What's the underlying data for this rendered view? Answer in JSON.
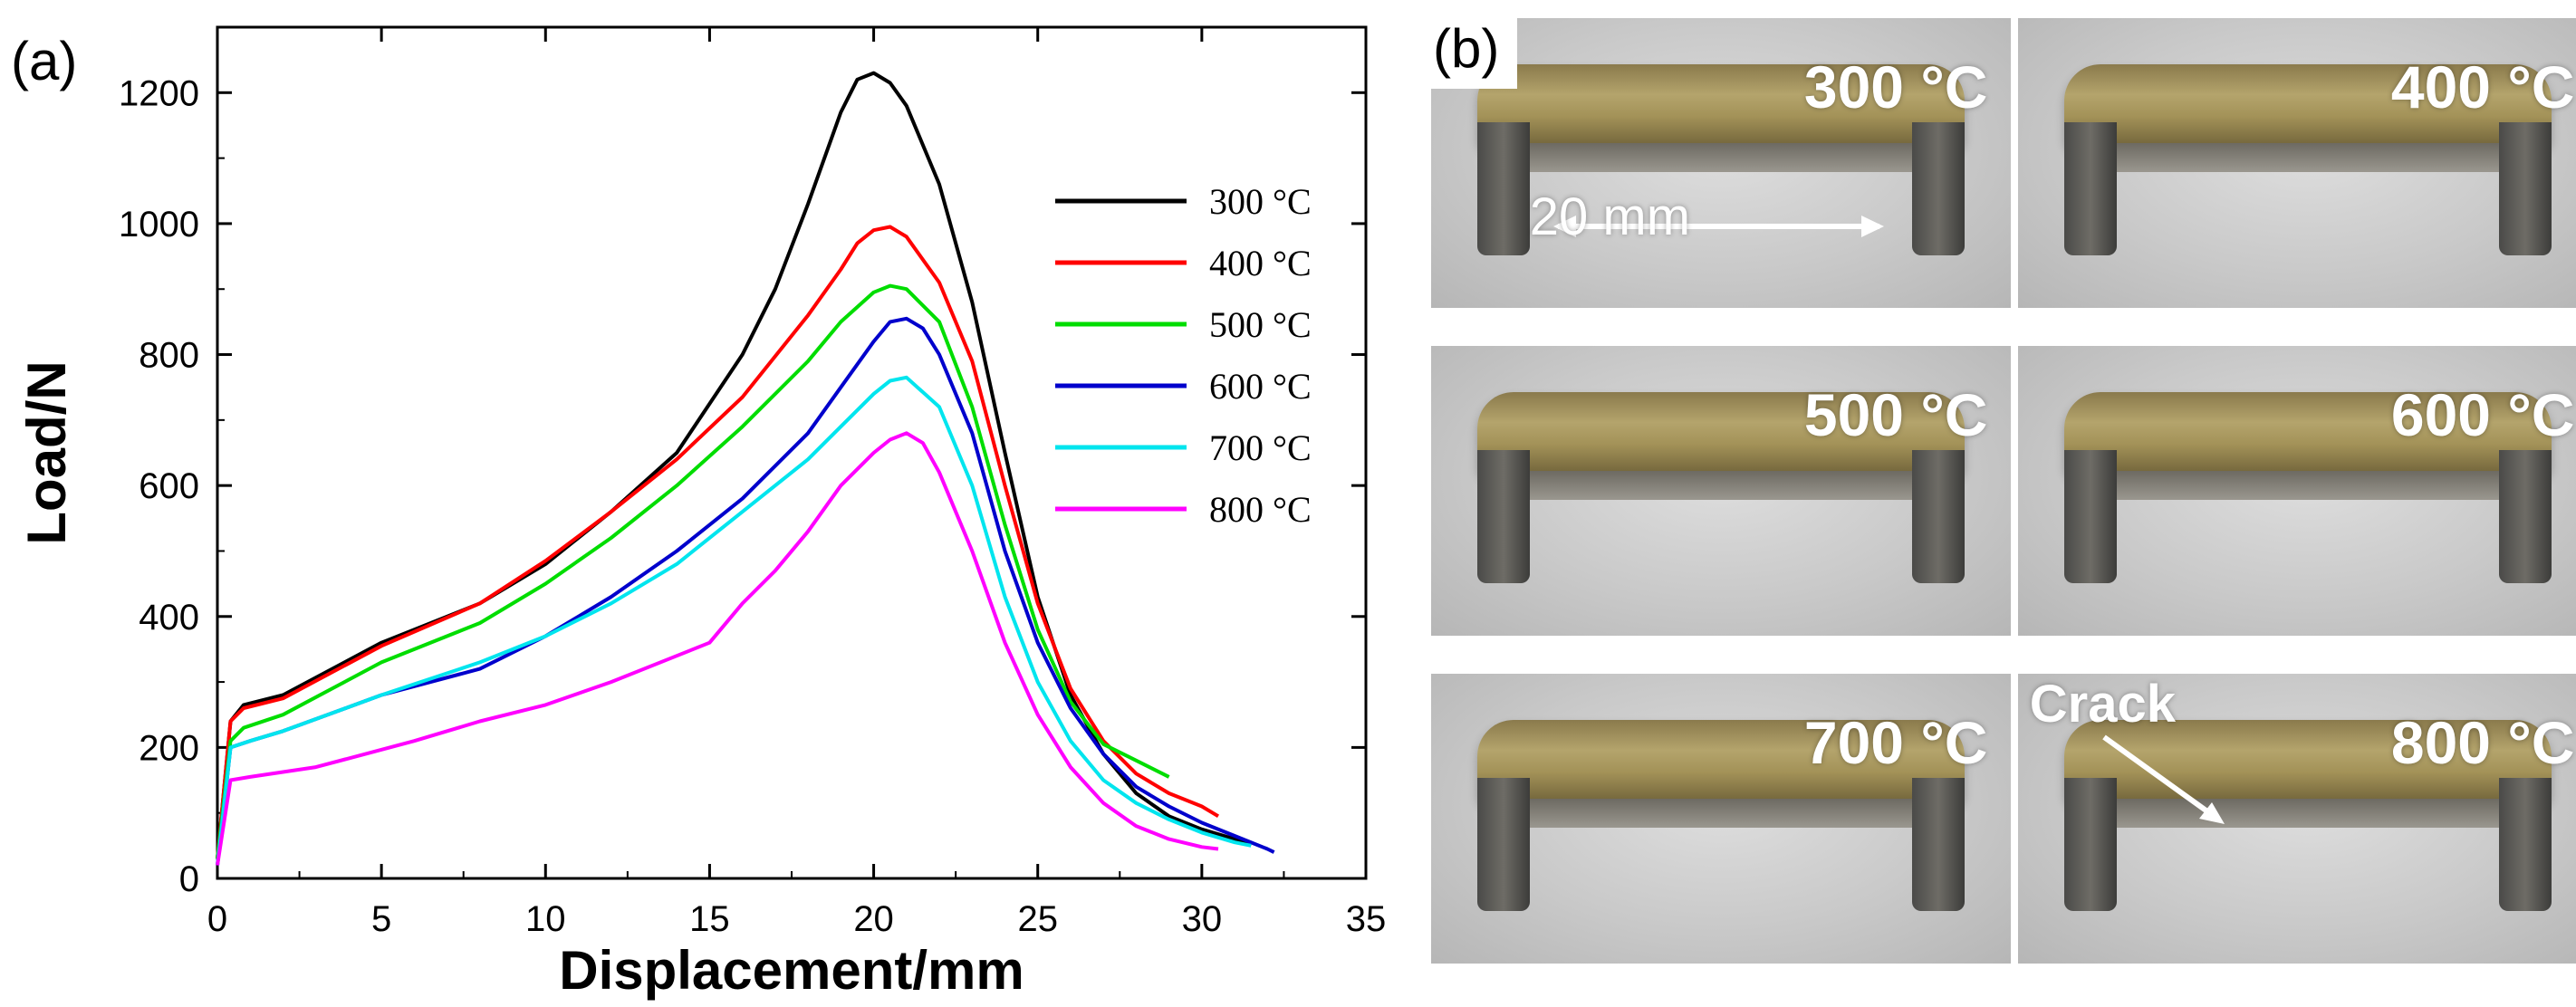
{
  "panel_a_label": "(a)",
  "panel_b_label": "(b)",
  "chart_data": {
    "type": "line",
    "title": "",
    "xlabel": "Displacement/mm",
    "ylabel": "Load/N",
    "xlim": [
      0,
      35
    ],
    "ylim": [
      0,
      1300
    ],
    "xticks": [
      0,
      5,
      10,
      15,
      20,
      25,
      30,
      35
    ],
    "yticks": [
      0,
      200,
      400,
      600,
      800,
      1000,
      1200
    ],
    "legend_position": "right",
    "series": [
      {
        "name": "300 °C",
        "color": "#000000",
        "x": [
          0,
          0.4,
          0.8,
          2,
          5,
          8,
          10,
          12,
          14,
          16,
          17,
          18,
          19,
          19.5,
          20,
          20.5,
          21,
          22,
          23,
          24,
          25,
          26,
          27,
          28,
          29,
          30,
          31,
          31.5
        ],
        "y": [
          30,
          240,
          265,
          280,
          360,
          420,
          480,
          560,
          650,
          800,
          900,
          1030,
          1170,
          1220,
          1230,
          1215,
          1180,
          1060,
          880,
          650,
          430,
          280,
          190,
          130,
          95,
          75,
          60,
          50
        ]
      },
      {
        "name": "400 °C",
        "color": "#ff0000",
        "x": [
          0,
          0.4,
          0.8,
          2,
          5,
          8,
          10,
          12,
          14,
          16,
          18,
          19,
          19.5,
          20,
          20.5,
          21,
          22,
          23,
          24,
          25,
          26,
          27,
          28,
          29,
          30,
          30.5
        ],
        "y": [
          30,
          240,
          260,
          275,
          355,
          420,
          485,
          560,
          640,
          735,
          860,
          930,
          970,
          990,
          995,
          980,
          910,
          790,
          600,
          420,
          290,
          210,
          160,
          130,
          110,
          95
        ]
      },
      {
        "name": "500 °C",
        "color": "#00dd00",
        "x": [
          0,
          0.4,
          0.8,
          2,
          5,
          8,
          10,
          12,
          14,
          16,
          18,
          19,
          20,
          20.5,
          21,
          22,
          23,
          24,
          25,
          26,
          27,
          28,
          29
        ],
        "y": [
          30,
          210,
          230,
          250,
          330,
          390,
          450,
          520,
          600,
          690,
          790,
          850,
          895,
          905,
          900,
          850,
          720,
          540,
          380,
          270,
          205,
          180,
          155
        ]
      },
      {
        "name": "600 °C",
        "color": "#0000cc",
        "x": [
          0,
          0.4,
          1,
          2,
          5,
          8,
          10,
          12,
          14,
          16,
          18,
          19,
          20,
          20.5,
          21,
          21.5,
          22,
          23,
          24,
          25,
          26,
          27,
          28,
          29,
          30,
          31,
          32,
          32.2
        ],
        "y": [
          20,
          200,
          210,
          225,
          280,
          320,
          370,
          430,
          500,
          580,
          680,
          750,
          820,
          850,
          855,
          840,
          800,
          680,
          500,
          360,
          260,
          190,
          140,
          110,
          85,
          65,
          45,
          40
        ]
      },
      {
        "name": "700 °C",
        "color": "#00e5ee",
        "x": [
          0,
          0.4,
          1,
          2,
          5,
          8,
          10,
          12,
          14,
          16,
          18,
          19,
          20,
          20.5,
          21,
          22,
          23,
          24,
          25,
          26,
          27,
          28,
          29,
          30,
          31,
          31.5
        ],
        "y": [
          20,
          200,
          210,
          225,
          280,
          330,
          370,
          420,
          480,
          560,
          640,
          690,
          740,
          760,
          765,
          720,
          600,
          430,
          300,
          210,
          150,
          115,
          90,
          70,
          55,
          50
        ]
      },
      {
        "name": "800 °C",
        "color": "#ff00ff",
        "x": [
          0,
          0.4,
          1,
          3,
          6,
          8,
          10,
          12,
          14,
          15,
          16,
          17,
          18,
          19,
          20,
          20.5,
          21,
          21.5,
          22,
          23,
          24,
          25,
          26,
          27,
          28,
          29,
          30,
          30.5
        ],
        "y": [
          20,
          150,
          155,
          170,
          210,
          240,
          265,
          300,
          340,
          360,
          420,
          470,
          530,
          600,
          650,
          670,
          680,
          665,
          620,
          500,
          360,
          250,
          170,
          115,
          80,
          60,
          48,
          45
        ]
      }
    ]
  },
  "photos": [
    {
      "temp": "300 °C",
      "dimension": "20 mm"
    },
    {
      "temp": "400 °C"
    },
    {
      "temp": "500 °C"
    },
    {
      "temp": "600 °C"
    },
    {
      "temp": "700 °C"
    },
    {
      "temp": "800 °C",
      "annotation": "Crack"
    }
  ]
}
